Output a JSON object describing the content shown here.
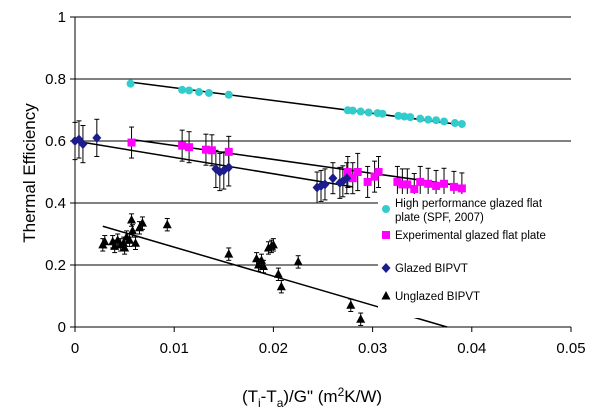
{
  "chart_data": {
    "type": "scatter",
    "xlabel": "(Ti-Ta)/G\" (m2K/W)",
    "xlabel_parts": [
      "(T",
      "i",
      "-T",
      "a",
      ")/G\" (m",
      "2",
      "K/W)"
    ],
    "ylabel": "Thermal Efficiency",
    "xlim": [
      0,
      0.05
    ],
    "ylim": [
      0,
      1
    ],
    "x_ticks": [
      0,
      0.01,
      0.02,
      0.03,
      0.04,
      0.05
    ],
    "x_tick_labels": [
      "0",
      "0.01",
      "0.02",
      "0.03",
      "0.04",
      "0.05"
    ],
    "y_ticks": [
      0,
      0.2,
      0.4,
      0.6,
      0.8,
      1
    ],
    "y_tick_labels": [
      "0",
      "0.2",
      "0.4",
      "0.6",
      "0.8",
      "1"
    ],
    "grid": "horizontal",
    "legend_position": "right",
    "series": [
      {
        "name": "High performance glazed flat plate (SPF, 2007)",
        "legend_lines": [
          "High performance glazed flat",
          "plate (SPF, 2007)"
        ],
        "marker": "circle",
        "color": "#33cccc",
        "x": [
          0.0056,
          0.0108,
          0.0115,
          0.0125,
          0.0135,
          0.0155,
          0.0275,
          0.028,
          0.0288,
          0.0296,
          0.0305,
          0.031,
          0.0326,
          0.0332,
          0.0338,
          0.0348,
          0.0356,
          0.0364,
          0.0372,
          0.0383,
          0.039
        ],
        "y": [
          0.785,
          0.765,
          0.763,
          0.758,
          0.755,
          0.749,
          0.699,
          0.698,
          0.695,
          0.692,
          0.69,
          0.688,
          0.681,
          0.679,
          0.677,
          0.672,
          0.669,
          0.667,
          0.663,
          0.658,
          0.655
        ],
        "trendline": {
          "x": [
            0.0056,
            0.039
          ],
          "y": [
            0.79,
            0.652
          ]
        }
      },
      {
        "name": "Experimental glazed flat plate",
        "legend_lines": [
          "Experimental glazed flat plate"
        ],
        "marker": "square",
        "color": "#ff00ff",
        "error_bars": true,
        "x": [
          0.0057,
          0.0108,
          0.0115,
          0.0132,
          0.0138,
          0.0155,
          0.0275,
          0.028,
          0.0285,
          0.0295,
          0.0302,
          0.0306,
          0.0325,
          0.033,
          0.0335,
          0.0342,
          0.0348,
          0.0356,
          0.0364,
          0.0372,
          0.0382,
          0.039
        ],
        "y": [
          0.595,
          0.585,
          0.58,
          0.572,
          0.57,
          0.565,
          0.5,
          0.48,
          0.5,
          0.468,
          0.485,
          0.5,
          0.468,
          0.46,
          0.46,
          0.445,
          0.468,
          0.462,
          0.455,
          0.462,
          0.452,
          0.447
        ],
        "err": [
          0.05,
          0.05,
          0.05,
          0.05,
          0.05,
          0.05,
          0.05,
          0.05,
          0.06,
          0.05,
          0.05,
          0.05,
          0.05,
          0.05,
          0.05,
          0.05,
          0.05,
          0.05,
          0.05,
          0.05,
          0.05,
          0.05
        ],
        "trendline": {
          "x": [
            0.0057,
            0.039
          ],
          "y": [
            0.605,
            0.455
          ]
        }
      },
      {
        "name": "Glazed BIPVT",
        "legend_lines": [
          "Glazed BIPVT"
        ],
        "marker": "diamond",
        "color": "#1c1c8c",
        "error_bars": true,
        "x": [
          0.0,
          0.0004,
          0.0008,
          0.0022,
          0.0142,
          0.0146,
          0.015,
          0.0155,
          0.0244,
          0.0248,
          0.0252,
          0.026,
          0.0267,
          0.027,
          0.0274
        ],
        "y": [
          0.6,
          0.605,
          0.59,
          0.61,
          0.51,
          0.5,
          0.505,
          0.515,
          0.45,
          0.455,
          0.46,
          0.48,
          0.465,
          0.47,
          0.48
        ],
        "err": [
          0.06,
          0.06,
          0.06,
          0.06,
          0.06,
          0.06,
          0.06,
          0.06,
          0.05,
          0.05,
          0.05,
          0.05,
          0.05,
          0.05,
          0.05
        ],
        "trendline": {
          "x": [
            0.0,
            0.028
          ],
          "y": [
            0.6,
            0.452
          ]
        }
      },
      {
        "name": "Unglazed BIPVT",
        "legend_lines": [
          "Unglazed BIPVT"
        ],
        "marker": "triangle",
        "color": "#000000",
        "error_bars": true,
        "x": [
          0.0028,
          0.003,
          0.0038,
          0.004,
          0.0043,
          0.0046,
          0.0049,
          0.005,
          0.0052,
          0.0055,
          0.0057,
          0.0058,
          0.0061,
          0.0065,
          0.0068,
          0.0093,
          0.0155,
          0.0183,
          0.0185,
          0.0188,
          0.019,
          0.0195,
          0.0198,
          0.02,
          0.0205,
          0.0208,
          0.0225,
          0.0278,
          0.0288
        ],
        "y": [
          0.265,
          0.275,
          0.275,
          0.26,
          0.28,
          0.265,
          0.27,
          0.255,
          0.29,
          0.28,
          0.345,
          0.31,
          0.27,
          0.32,
          0.335,
          0.33,
          0.235,
          0.22,
          0.2,
          0.215,
          0.195,
          0.255,
          0.26,
          0.265,
          0.17,
          0.13,
          0.21,
          0.07,
          0.025
        ],
        "err": [
          0.02,
          0.02,
          0.02,
          0.02,
          0.02,
          0.02,
          0.02,
          0.02,
          0.02,
          0.02,
          0.02,
          0.02,
          0.02,
          0.02,
          0.02,
          0.02,
          0.02,
          0.02,
          0.02,
          0.02,
          0.02,
          0.02,
          0.02,
          0.02,
          0.02,
          0.02,
          0.02,
          0.02,
          0.02
        ],
        "trendline": {
          "x": [
            0.0028,
            0.0375
          ],
          "y": [
            0.325,
            0.0
          ]
        }
      }
    ]
  }
}
